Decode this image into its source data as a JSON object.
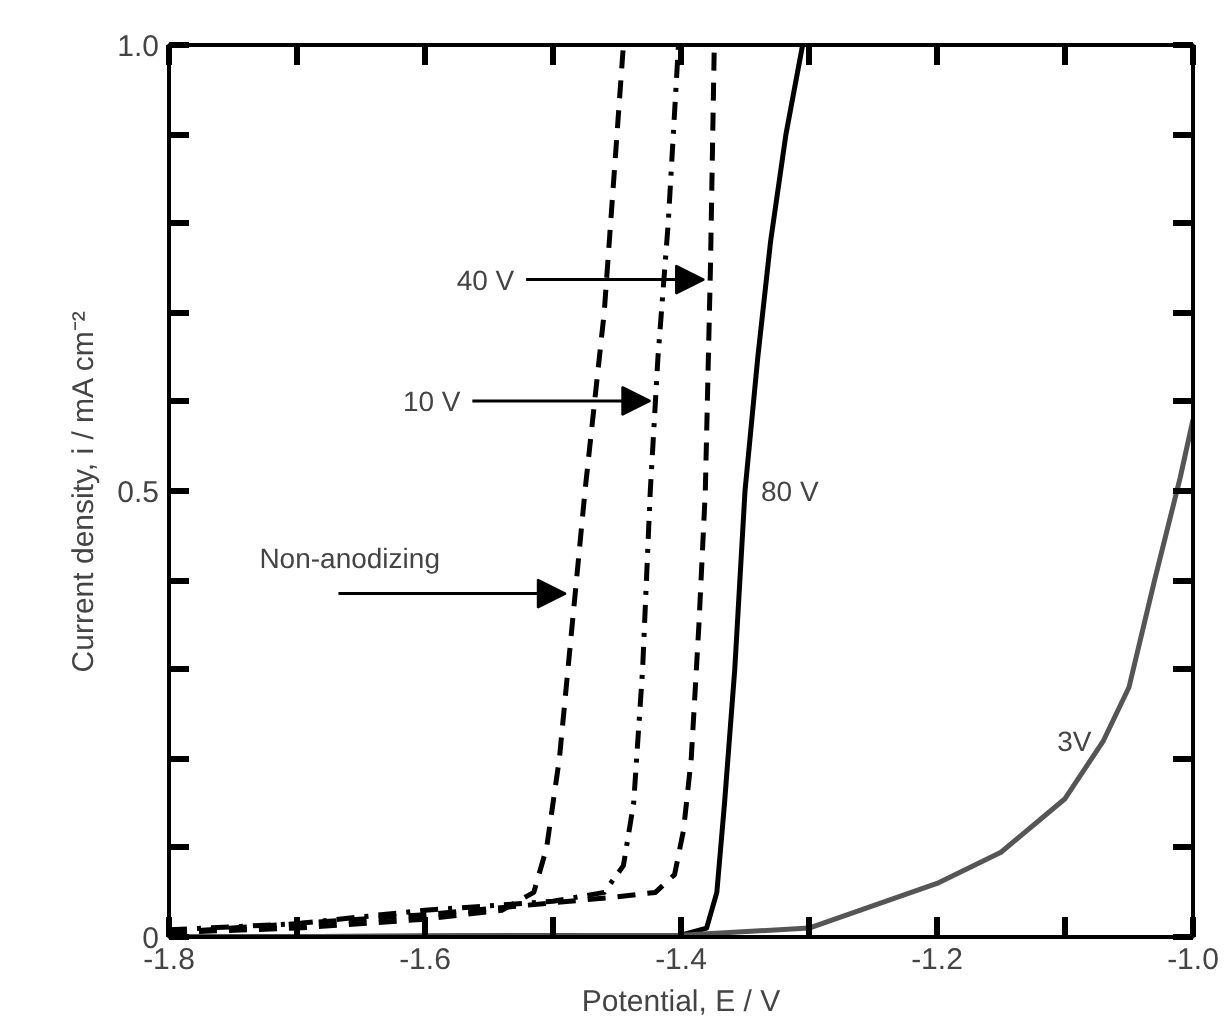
{
  "chart_data": {
    "type": "line",
    "xlabel": "Potential, E / V",
    "ylabel": "Current density, i / mA cm⁻²",
    "xlim": [
      -1.8,
      -1.0
    ],
    "ylim": [
      0,
      1.0
    ],
    "xticks": [
      -1.8,
      {
        "value": -1.7,
        "label": null
      },
      -1.6,
      {
        "value": -1.5,
        "label": null
      },
      -1.4,
      {
        "value": -1.3,
        "label": null
      },
      -1.2,
      {
        "value": -1.1,
        "label": null
      },
      {
        "value": -1.0,
        "label": "-1.0"
      }
    ],
    "yticks": [
      0,
      {
        "value": 0.1,
        "label": null
      },
      {
        "value": 0.2,
        "label": null
      },
      {
        "value": 0.3,
        "label": null
      },
      {
        "value": 0.4,
        "label": null
      },
      0.5,
      {
        "value": 0.6,
        "label": null
      },
      {
        "value": 0.7,
        "label": null
      },
      {
        "value": 0.8,
        "label": null
      },
      {
        "value": 0.9,
        "label": null
      },
      {
        "value": 1.0,
        "label": "1.0"
      }
    ],
    "grid": false,
    "series": [
      {
        "color": "#000000",
        "line_style": "dashed",
        "x": [
          -1.8,
          -1.7,
          -1.6,
          -1.54,
          -1.515,
          -1.505,
          -1.495,
          -1.485,
          -1.475,
          -1.46,
          -1.445
        ],
        "values": [
          0.005,
          0.01,
          0.02,
          0.03,
          0.05,
          0.1,
          0.2,
          0.35,
          0.5,
          0.7,
          1.0
        ]
      },
      {
        "color": "#000000",
        "line_style": "dashdot",
        "x": [
          -1.8,
          -1.7,
          -1.6,
          -1.5,
          -1.46,
          -1.445,
          -1.437,
          -1.43,
          -1.424,
          -1.418,
          -1.41,
          -1.402
        ],
        "values": [
          0.008,
          0.015,
          0.03,
          0.04,
          0.05,
          0.08,
          0.15,
          0.3,
          0.5,
          0.65,
          0.8,
          1.0
        ]
      },
      {
        "color": "#000000",
        "line_style": "dashed",
        "x": [
          -1.8,
          -1.6,
          -1.45,
          -1.42,
          -1.405,
          -1.398,
          -1.392,
          -1.386,
          -1.381,
          -1.377,
          -1.374
        ],
        "values": [
          0.005,
          0.025,
          0.045,
          0.05,
          0.07,
          0.12,
          0.2,
          0.35,
          0.5,
          0.75,
          1.0
        ]
      },
      {
        "color": "#000000",
        "line_style": "solid",
        "x": [
          -1.8,
          -1.4,
          -1.38,
          -1.372,
          -1.366,
          -1.358,
          -1.35,
          -1.34,
          -1.33,
          -1.318,
          -1.305
        ],
        "values": [
          0,
          0.002,
          0.01,
          0.05,
          0.15,
          0.3,
          0.5,
          0.65,
          0.78,
          0.9,
          1.0
        ]
      },
      {
        "color": "#555555",
        "line_style": "solid",
        "x": [
          -1.8,
          -1.4,
          -1.3,
          -1.2,
          -1.15,
          -1.1,
          -1.07,
          -1.05,
          -1.03,
          -1.01,
          -1.0
        ],
        "values": [
          0,
          0.002,
          0.01,
          0.06,
          0.095,
          0.155,
          0.22,
          0.28,
          0.4,
          0.515,
          0.58
        ]
      }
    ],
    "annotations": [
      {
        "text": "40 V",
        "x": -1.382,
        "y": 0.737
      },
      {
        "text": "10 V",
        "x": -1.424,
        "y": 0.601
      },
      {
        "text": "Non-anodizing",
        "x": -1.49,
        "y": 0.385
      },
      {
        "text": "80 V",
        "x": -1.35,
        "y": 0.5
      },
      {
        "text": "3V",
        "x": -1.07,
        "y": 0.22
      }
    ]
  }
}
